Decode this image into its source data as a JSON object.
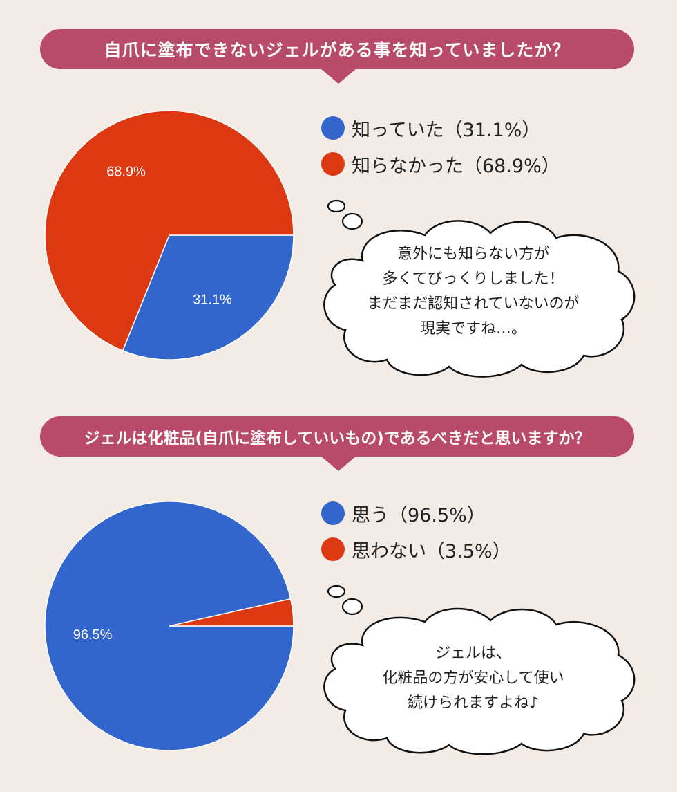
{
  "colors": {
    "blue": "#3366cc",
    "red": "#dc3912",
    "banner": "#b84a6a",
    "background": "#f3ece6"
  },
  "sections": [
    {
      "question": "自爪に塗布できないジェルがある事を知っていましたか？",
      "legend": [
        "知っていた（31.1%）",
        "知らなかった（68.9%）"
      ],
      "slice_labels": [
        "31.1%",
        "68.9%"
      ],
      "comment": [
        "意外にも知らない方が",
        "多くてびっくりしました！",
        "まだまだ認知されていないのが",
        "現実ですね…。"
      ]
    },
    {
      "question": "ジェルは化粧品(自爪に塗布していいもの)であるべきだと思いますか？",
      "legend": [
        "思う（96.5%）",
        "思わない（3.5%）"
      ],
      "slice_labels": [
        "96.5%"
      ],
      "comment": [
        "ジェルは、",
        "化粧品の方が安心して使い",
        "続けられますよね♪"
      ]
    }
  ],
  "chart_data": [
    {
      "type": "pie",
      "title": "自爪に塗布できないジェルがある事を知っていましたか？",
      "categories": [
        "知っていた",
        "知らなかった"
      ],
      "values": [
        31.1,
        68.9
      ],
      "colors": [
        "#3366cc",
        "#dc3912"
      ],
      "data_labels": [
        "31.1%",
        "68.9%"
      ]
    },
    {
      "type": "pie",
      "title": "ジェルは化粧品(自爪に塗布していいもの)であるべきだと思いますか？",
      "categories": [
        "思う",
        "思わない"
      ],
      "values": [
        96.5,
        3.5
      ],
      "colors": [
        "#3366cc",
        "#dc3912"
      ],
      "data_labels": [
        "96.5%",
        ""
      ]
    }
  ]
}
